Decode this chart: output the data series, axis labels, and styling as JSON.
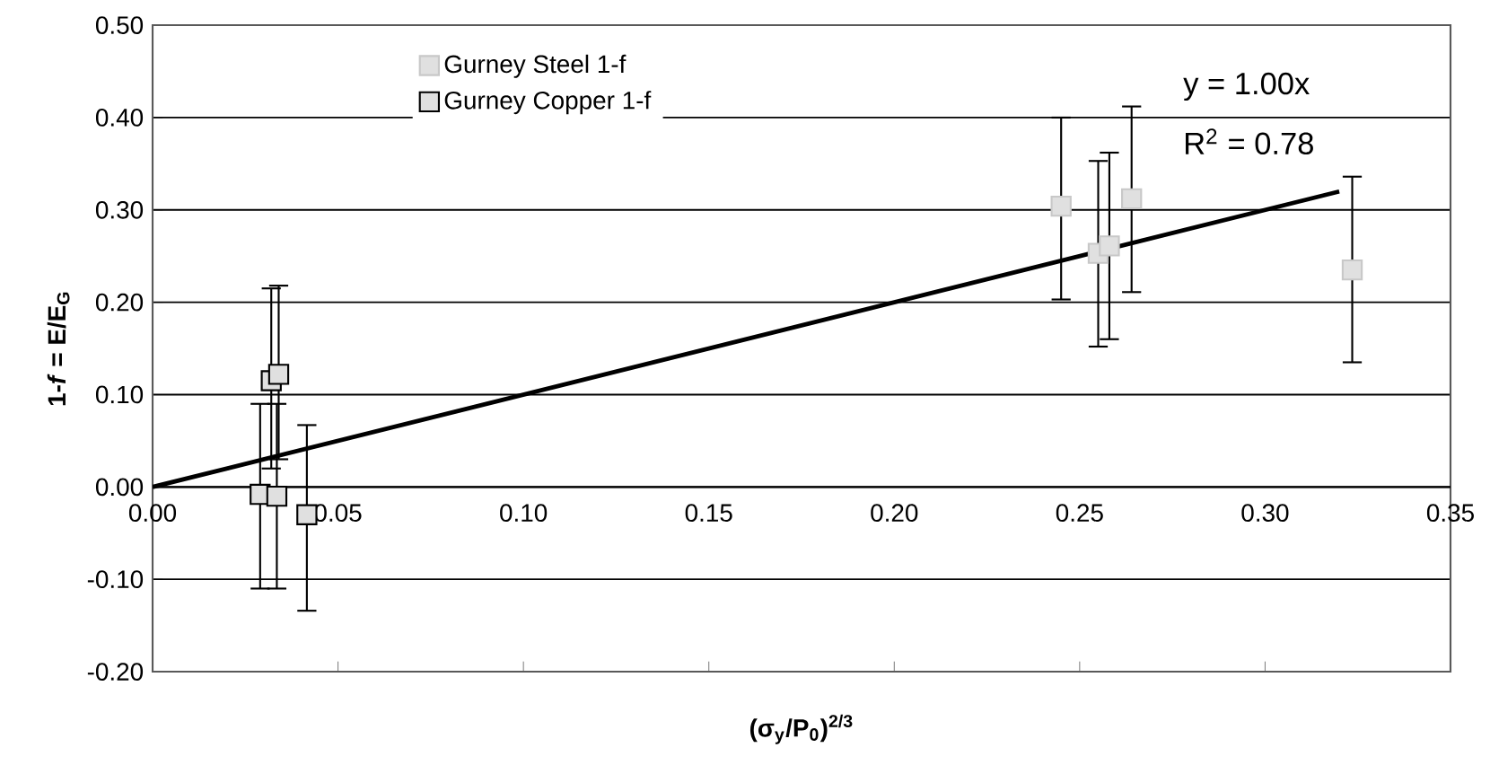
{
  "chart_data": {
    "type": "scatter",
    "xlabel": "(σ$_{y}$/P$_{0}$)$^{2/3}$",
    "ylabel": "1-*f* = E/E$_{G}$",
    "xlim": [
      0,
      0.35
    ],
    "xticks": [
      {
        "value": 0,
        "label": "0.00"
      },
      0.05,
      {
        "value": 0.1,
        "label": "0.10"
      },
      0.15,
      {
        "value": 0.2,
        "label": "0.20"
      },
      0.25,
      {
        "value": 0.3,
        "label": "0.30"
      },
      0.35
    ],
    "ylim": [
      -0.2,
      0.5
    ],
    "yticks": [
      {
        "value": -0.2,
        "label": "-0.20"
      },
      {
        "value": -0.1,
        "label": "-0.10"
      },
      {
        "value": 0,
        "label": "0.00"
      },
      {
        "value": 0.1,
        "label": "0.10"
      },
      {
        "value": 0.2,
        "label": "0.20"
      },
      {
        "value": 0.3,
        "label": "0.30"
      },
      {
        "value": 0.4,
        "label": "0.40"
      },
      {
        "value": 0.5,
        "label": "0.50"
      }
    ],
    "grid": "y",
    "legend": "top left",
    "marker": "square",
    "annotations": [
      "y = 1.00x",
      "R$^{2}$ = 0.78"
    ],
    "series": [
      {
        "name": "Gurney Steel 1-f",
        "color": "#c8c8c8",
        "x": [
          0.245,
          0.255,
          0.258,
          0.264,
          0.3235
        ],
        "values": [
          0.304,
          0.253,
          0.261,
          0.312,
          0.235
        ],
        "errors": [
          [
            0.203,
            0.4
          ],
          [
            0.152,
            0.353
          ],
          [
            0.16,
            0.362
          ],
          [
            0.211,
            0.412
          ],
          [
            0.135,
            0.336
          ]
        ]
      },
      {
        "name": "Gurney Copper 1-f",
        "color": "#000000",
        "x": [
          0.029,
          0.0335,
          0.0416,
          0.032,
          0.034
        ],
        "values": [
          -0.008,
          -0.01,
          -0.03,
          0.115,
          0.122
        ],
        "errors": [
          [
            -0.11,
            0.09
          ],
          [
            -0.11,
            0.09
          ],
          [
            -0.134,
            0.067
          ],
          [
            0.02,
            0.215
          ],
          [
            0.03,
            0.218
          ]
        ]
      },
      {
        "type": "line",
        "marker": "none",
        "color": "#000000",
        "x": [
          0,
          0.32
        ],
        "values": [
          0,
          0.32
        ]
      }
    ]
  }
}
